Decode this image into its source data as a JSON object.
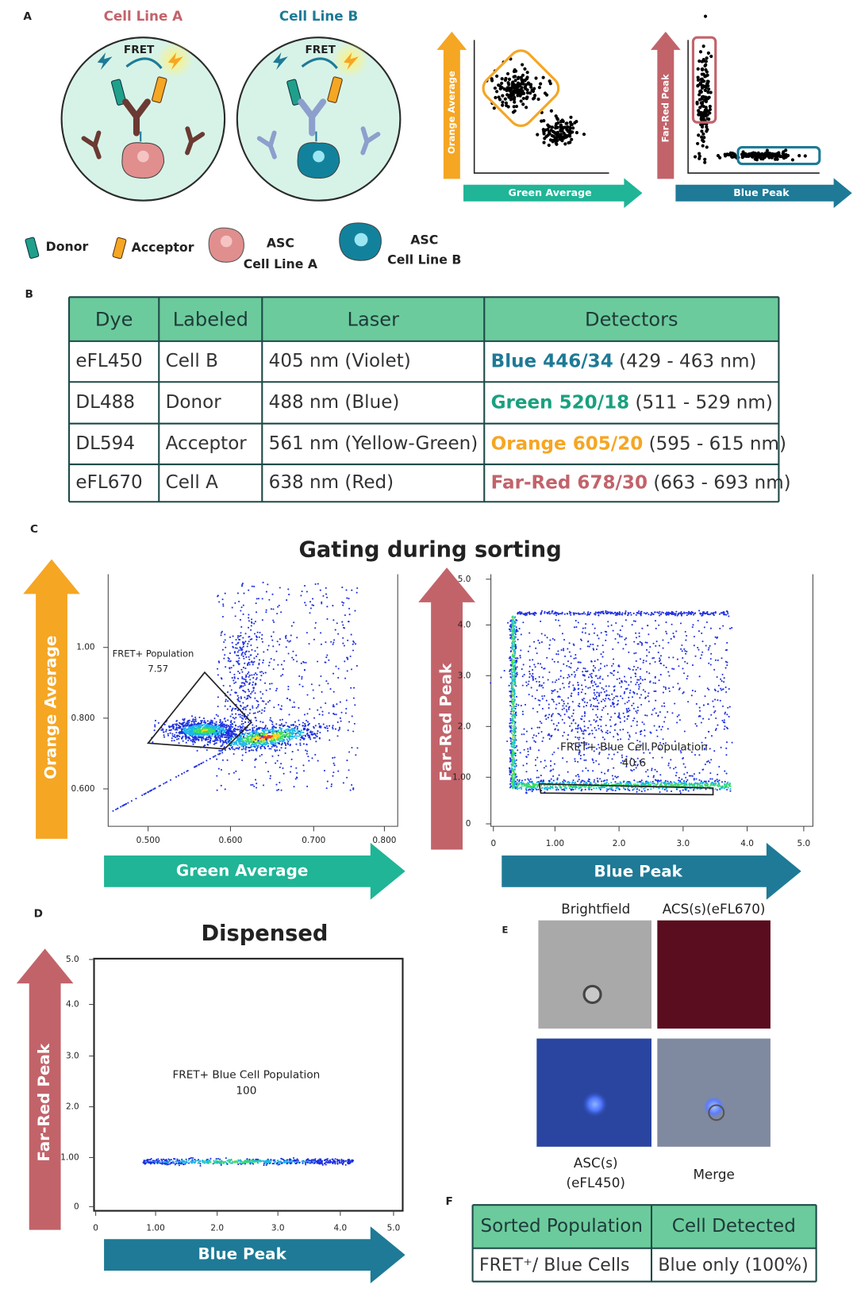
{
  "panels": {
    "a": "A",
    "b": "B",
    "c": "C",
    "d": "D",
    "e": "E",
    "f": "F"
  },
  "schematic": {
    "cell_line_a": "Cell Line A",
    "cell_line_b": "Cell Line B",
    "fret_a": "FRET",
    "fret_b": "FRET",
    "plot1_y": "Orange Average",
    "plot1_x": "Green Average",
    "plot2_y": "Far-Red Peak",
    "plot2_x": "Blue Peak"
  },
  "legend": {
    "donor": "Donor",
    "acceptor": "Acceptor",
    "asc_a": [
      "ASC",
      "Cell Line A"
    ],
    "asc_b": [
      "ASC",
      "Cell Line B"
    ]
  },
  "table": {
    "header": [
      "Dye",
      "Labeled",
      "Laser",
      "Detectors"
    ],
    "rows": [
      [
        "eFL450",
        "Cell B",
        "405 nm (Violet)",
        "Blue 446/34",
        "(429 - 463 nm)"
      ],
      [
        "DL488",
        "Donor",
        "488 nm (Blue)",
        "Green 520/18",
        "(511 - 529 nm)"
      ],
      [
        "DL594",
        "Acceptor",
        "561 nm (Yellow-Green)",
        "Orange 605/20",
        "(595 - 615 nm)"
      ],
      [
        "eFL670",
        "Cell A",
        "638 nm (Red)",
        "Far-Red 678/30",
        "(663 - 693 nm)"
      ]
    ]
  },
  "gating": {
    "title": "Gating during sorting",
    "plot1": {
      "y_label": "Orange Average",
      "x_label": "Green Average",
      "yticks": [
        "1.00",
        "0.800",
        "0.600"
      ],
      "xticks": [
        "0.500",
        "0.600",
        "0.700",
        "0.800"
      ],
      "gate": "FRET+ Population",
      "gate_value": "7.57"
    },
    "plot2": {
      "y_label": "Far-Red Peak",
      "x_label": "Blue Peak",
      "yticks": [
        "5.0",
        "4.0",
        "3.0",
        "2.0",
        "1.00",
        "0"
      ],
      "xticks": [
        "0",
        "1.00",
        "2.0",
        "3.0",
        "4.0",
        "5.0"
      ],
      "gate": "FRET+ Blue Cell Population",
      "gate_value": "40.6"
    }
  },
  "dispensed": {
    "title": "Dispensed",
    "y_label": "Far-Red Peak",
    "x_label": "Blue Peak",
    "yticks": [
      "5.0",
      "4.0",
      "3.0",
      "2.0",
      "1.00",
      "0"
    ],
    "xticks": [
      "0",
      "1.00",
      "2.0",
      "3.0",
      "4.0",
      "5.0"
    ],
    "gate": "FRET+ Blue Cell Population",
    "gate_value": "100"
  },
  "images": {
    "brightfield": "Brightfield",
    "red": "ACS(s)(eFL670)",
    "blue": [
      "ASC(s)",
      "(eFL450)"
    ],
    "merge": "Merge"
  },
  "sorted_table": {
    "header": [
      "Sorted Population",
      "Cell Detected"
    ],
    "row": [
      "FRET⁺/ Blue Cells",
      "Blue only (100%)"
    ]
  }
}
